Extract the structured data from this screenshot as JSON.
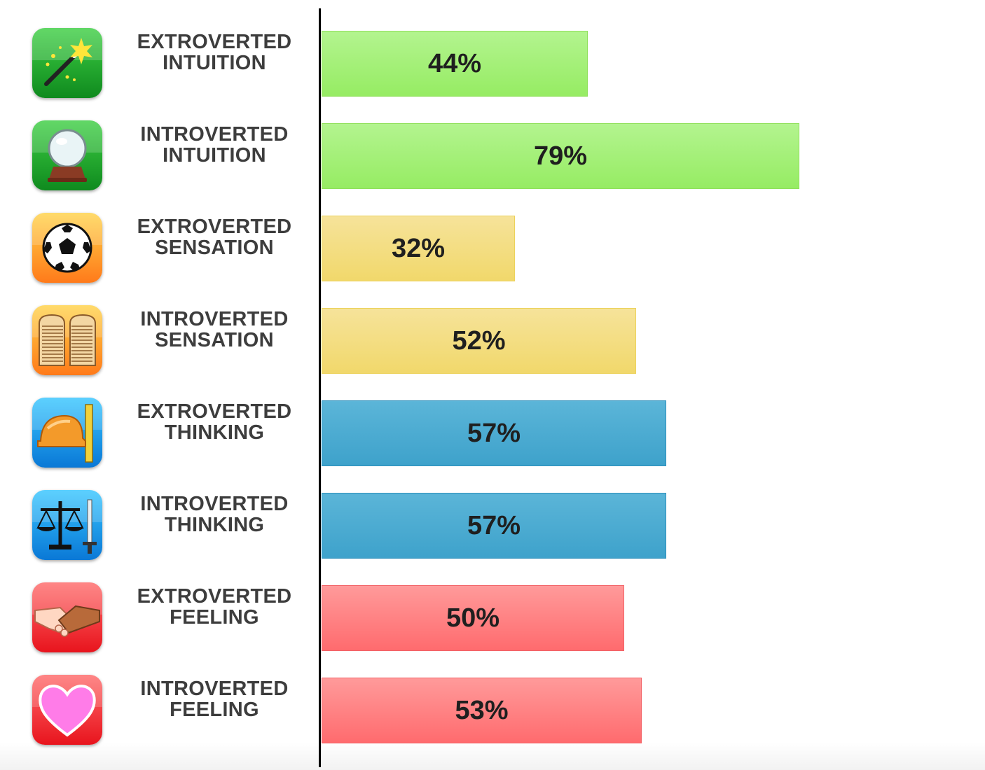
{
  "chart_data": {
    "type": "bar",
    "orientation": "horizontal",
    "categories": [
      "EXTROVERTED INTUITION",
      "INTROVERTED INTUITION",
      "EXTROVERTED SENSATION",
      "INTROVERTED SENSATION",
      "EXTROVERTED THINKING",
      "INTROVERTED THINKING",
      "EXTROVERTED FEELING",
      "INTROVERTED FEELING"
    ],
    "values": [
      44,
      79,
      32,
      52,
      57,
      57,
      50,
      53
    ],
    "value_labels": [
      "44%",
      "79%",
      "32%",
      "52%",
      "57%",
      "57%",
      "50%",
      "53%"
    ],
    "xlim": [
      0,
      100
    ],
    "grid": false,
    "legend": "none"
  },
  "rows": [
    {
      "line1": "EXTROVERTED",
      "line2": "INTUITION",
      "icon": "magic-wand-icon",
      "color": "#96ec63"
    },
    {
      "line1": "INTROVERTED",
      "line2": "INTUITION",
      "icon": "crystal-ball-icon",
      "color": "#96ec63"
    },
    {
      "line1": "EXTROVERTED",
      "line2": "SENSATION",
      "icon": "soccer-ball-icon",
      "color": "#f1d86b"
    },
    {
      "line1": "INTROVERTED",
      "line2": "SENSATION",
      "icon": "stone-tablets-icon",
      "color": "#f1d86b"
    },
    {
      "line1": "EXTROVERTED",
      "line2": "THINKING",
      "icon": "hard-hat-ruler-icon",
      "color": "#3ea2cb"
    },
    {
      "line1": "INTROVERTED",
      "line2": "THINKING",
      "icon": "scales-sword-icon",
      "color": "#3ea2cb"
    },
    {
      "line1": "EXTROVERTED",
      "line2": "FEELING",
      "icon": "handshake-icon",
      "color": "#ff6b6e"
    },
    {
      "line1": "INTROVERTED",
      "line2": "FEELING",
      "icon": "heart-icon",
      "color": "#ff6b6e"
    }
  ]
}
